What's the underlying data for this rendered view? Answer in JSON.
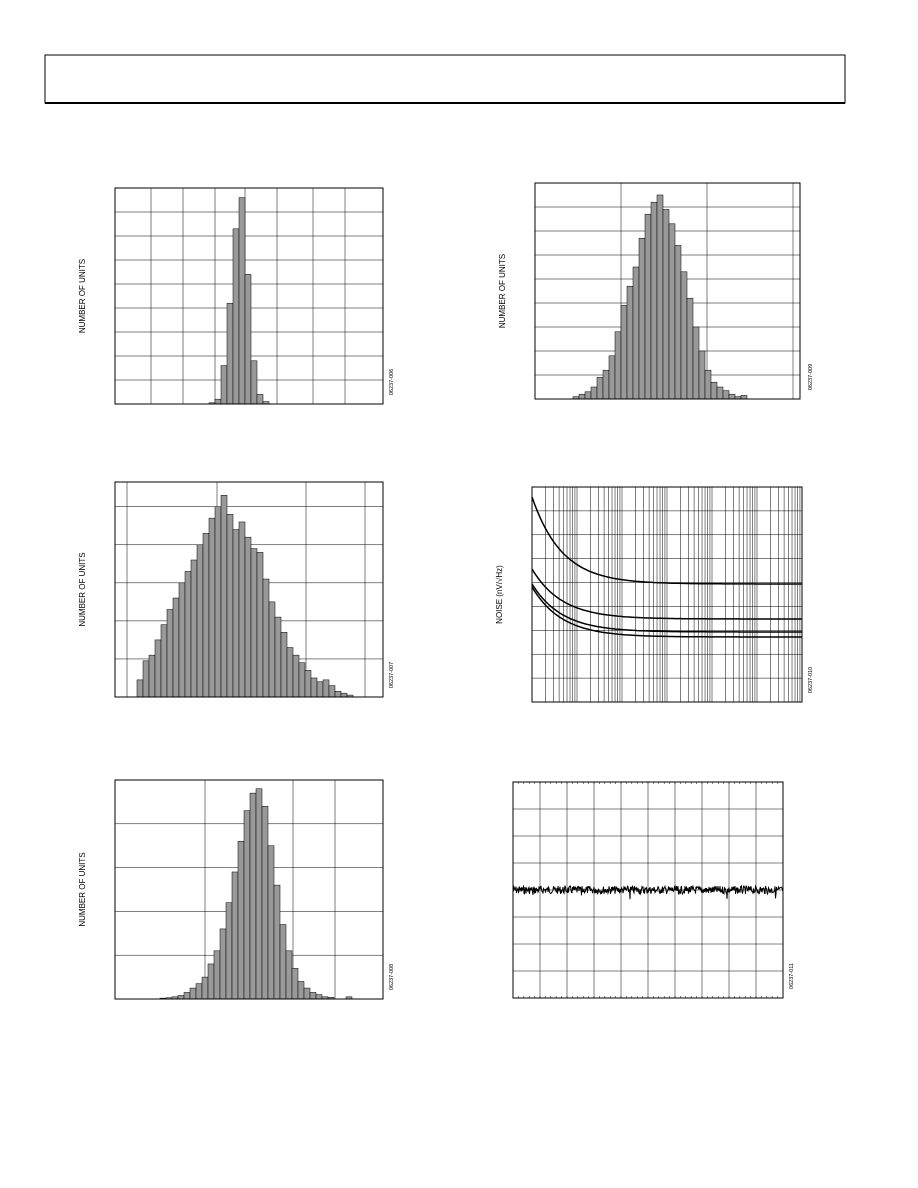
{
  "plots": [
    {
      "ylabel": "NUMBER OF UNITS",
      "code": "06237-006",
      "bars": [
        0.05,
        0.2,
        1.6,
        4.2,
        7.3,
        8.6,
        5.4,
        1.8,
        0.4,
        0.1
      ]
    },
    {
      "ylabel": "NUMBER OF UNITS",
      "code": "06237-009",
      "bars": [
        0.1,
        0.2,
        0.3,
        0.5,
        0.9,
        1.2,
        1.8,
        2.8,
        3.9,
        4.7,
        5.5,
        6.7,
        7.7,
        8.2,
        8.5,
        7.9,
        7.3,
        6.4,
        5.3,
        4.2,
        3.0,
        2.0,
        1.2,
        0.7,
        0.5,
        0.35,
        0.2,
        0.1,
        0.15
      ]
    },
    {
      "ylabel": "NUMBER OF UNITS",
      "code": "06237-007",
      "bars": [
        0.45,
        0.95,
        1.1,
        1.5,
        1.9,
        2.3,
        2.6,
        3.0,
        3.3,
        3.6,
        4.0,
        4.3,
        4.7,
        5.0,
        5.3,
        4.8,
        4.4,
        4.6,
        4.2,
        3.9,
        3.8,
        3.1,
        2.5,
        2.1,
        1.7,
        1.3,
        1.1,
        0.9,
        0.7,
        0.5,
        0.4,
        0.45,
        0.3,
        0.15,
        0.1,
        0.05
      ]
    },
    {
      "ylabel": "NOISE (nV/√Hz)",
      "code": "06237-010"
    },
    {
      "ylabel": "NUMBER OF UNITS",
      "code": "06237-008",
      "bars": [
        0.02,
        0.03,
        0.05,
        0.08,
        0.15,
        0.25,
        0.35,
        0.5,
        0.8,
        1.1,
        1.6,
        2.2,
        2.9,
        3.6,
        4.3,
        4.7,
        4.8,
        4.4,
        3.5,
        2.6,
        1.7,
        1.1,
        0.7,
        0.4,
        0.25,
        0.15,
        0.1,
        0.05,
        0.04,
        0,
        0,
        0.05,
        0
      ]
    },
    {
      "code": "06237-011"
    }
  ]
}
